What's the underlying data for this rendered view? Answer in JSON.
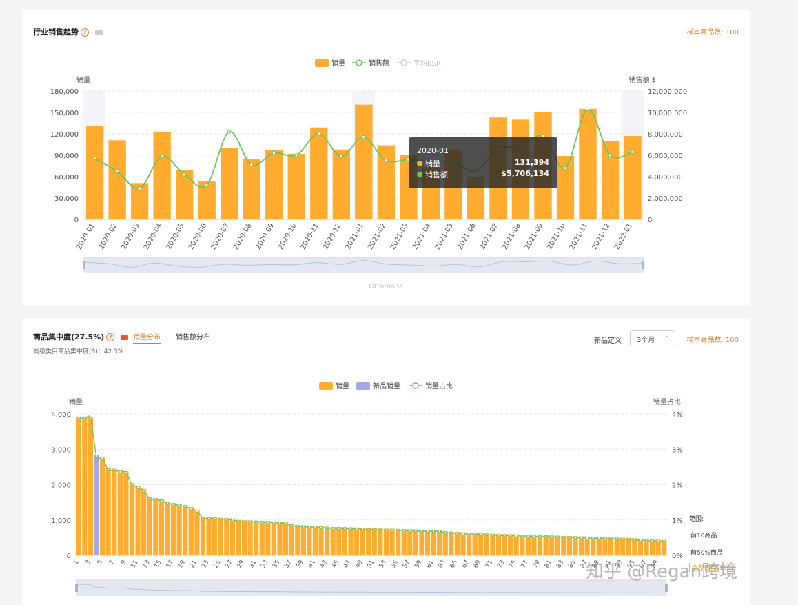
{
  "trend": {
    "title": "行业销售趋势",
    "sample": "样本商品数: 100",
    "legend": [
      "销量",
      "销售额",
      "平均BSR"
    ],
    "y_left_label": "销量",
    "y_right_label": "销售额 $",
    "slider_label": "Ottomans",
    "tooltip": {
      "date": "2020-01",
      "row1_label": "销量",
      "row1_value": "131,394",
      "row2_label": "销售额",
      "row2_value": "$5,706,134"
    }
  },
  "conc": {
    "title": "商品集中度(27.5%)",
    "tab_active": "销量分布",
    "tab_other": "销售额分布",
    "subtitle": "同级类目商品集中度(8)：42.3%",
    "new_def_label": "新品定义",
    "new_def_value": "3个月",
    "sample": "样本商品数: 100",
    "legend": [
      "销量",
      "新品销量",
      "销量占比"
    ],
    "y_left_label": "销量",
    "y_right_label": "销量占比",
    "range_title": "范围:",
    "range_items": [
      "前10商品",
      "前50%商品",
      "全部商品(100)"
    ]
  },
  "watermark": "知乎 @Regan跨境",
  "colors": {
    "bar": "#ffac2f",
    "line": "#6cc35a",
    "new": "#a0a8e8",
    "accent": "#e07a24"
  },
  "chart_data": [
    {
      "type": "bar",
      "title": "",
      "categories": [
        "2020-01",
        "2020-02",
        "2020-03",
        "2020-04",
        "2020-05",
        "2020-06",
        "2020-07",
        "2020-08",
        "2020-09",
        "2020-10",
        "2020-11",
        "2020-12",
        "2021-01",
        "2021-02",
        "2021-03",
        "2021-04",
        "2021-05",
        "2021-06",
        "2021-07",
        "2021-08",
        "2021-09",
        "2021-10",
        "2021-11",
        "2021-12",
        "2022-01"
      ],
      "series": [
        {
          "name": "销量",
          "axis": "left",
          "values": [
            131394,
            111000,
            51000,
            122000,
            69000,
            54000,
            100000,
            85000,
            97000,
            92000,
            129000,
            98000,
            161000,
            104000,
            90000,
            73000,
            98000,
            59000,
            143000,
            140000,
            150000,
            89000,
            155000,
            110000,
            117000
          ]
        },
        {
          "name": "销售额",
          "axis": "right",
          "type": "line",
          "values": [
            5706134,
            4500000,
            2900000,
            5900000,
            4200000,
            3200000,
            8200000,
            5100000,
            6200000,
            6000000,
            8000000,
            5900000,
            7700000,
            5500000,
            5600000,
            5400000,
            5400000,
            4500000,
            6600000,
            6800000,
            7800000,
            4800000,
            10300000,
            6000000,
            6300000
          ]
        }
      ],
      "ylabel_left": "销量",
      "ylabel_right": "销售额 $",
      "ylim_left": [
        0,
        180000
      ],
      "ylim_right": [
        0,
        12000000
      ],
      "yticks_left": [
        "0",
        "30,000",
        "60,000",
        "90,000",
        "120,000",
        "150,000",
        "180,000"
      ],
      "yticks_right": [
        "0",
        "2,000,000",
        "4,000,000",
        "6,000,000",
        "8,000,000",
        "10,000,000",
        "12,000,000"
      ],
      "grid": true,
      "legend": "top-center"
    },
    {
      "type": "bar",
      "title": "",
      "x_count": 100,
      "series": [
        {
          "name": "销量",
          "values": [
            3920,
            3910,
            3900,
            2850,
            2790,
            2460,
            2450,
            2400,
            2380,
            2040,
            1960,
            1870,
            1640,
            1620,
            1580,
            1510,
            1480,
            1450,
            1420,
            1360,
            1290,
            1100,
            1080,
            1070,
            1060,
            1050,
            1040,
            1000,
            990,
            985,
            980,
            975,
            970,
            960,
            950,
            945,
            880,
            860,
            850,
            840,
            830,
            820,
            810,
            800,
            800,
            795,
            790,
            785,
            780,
            760,
            760,
            755,
            750,
            750,
            745,
            740,
            735,
            730,
            725,
            720,
            720,
            715,
            680,
            670,
            660,
            650,
            645,
            640,
            630,
            620,
            610,
            600,
            600,
            595,
            590,
            585,
            580,
            575,
            570,
            565,
            560,
            555,
            550,
            545,
            540,
            535,
            530,
            525,
            520,
            510,
            505,
            500,
            495,
            490,
            480,
            470,
            455,
            445,
            440,
            435
          ]
        },
        {
          "name": "新品销量",
          "values_by_rank": {
            "4": 2850
          }
        },
        {
          "name": "销量占比",
          "type": "line",
          "unit": "%"
        }
      ],
      "ylabel_left": "销量",
      "ylabel_right": "销量占比",
      "ylim_left": [
        0,
        4000
      ],
      "ylim_right": [
        0,
        4
      ],
      "yticks_left": [
        "0",
        "1,000",
        "2,000",
        "3,000",
        "4,000"
      ],
      "yticks_right": [
        "0%",
        "1%",
        "2%",
        "3%",
        "4%"
      ],
      "xticks": [
        "1",
        "3",
        "5",
        "7",
        "9",
        "11",
        "13",
        "15",
        "17",
        "19",
        "21",
        "23",
        "25",
        "27",
        "29",
        "31",
        "33",
        "35",
        "37",
        "39",
        "41",
        "43",
        "45",
        "47",
        "49",
        "51",
        "53",
        "55",
        "57",
        "59",
        "61",
        "63",
        "65",
        "67",
        "69",
        "71",
        "73",
        "75",
        "77",
        "79",
        "81",
        "83",
        "85",
        "87",
        "89",
        "91",
        "93",
        "95",
        "97",
        "99"
      ],
      "grid": true,
      "legend": "top-center"
    }
  ]
}
